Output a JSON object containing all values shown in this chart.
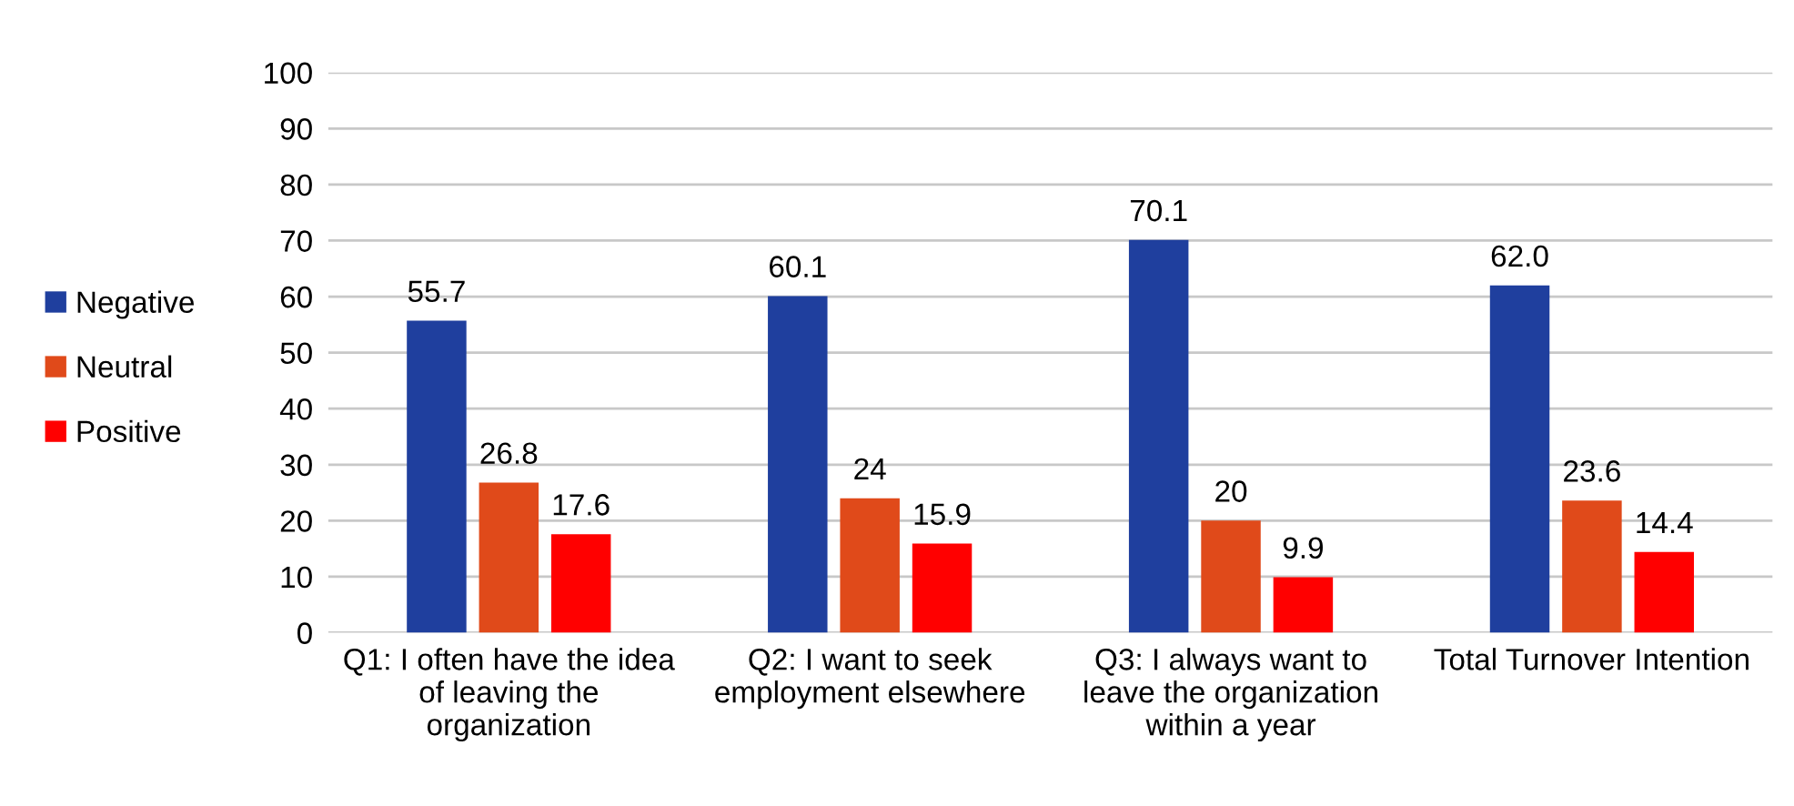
{
  "chart_data": {
    "type": "bar",
    "categories": [
      "Q1: I often have the idea\nof leaving the\norganization",
      "Q2: I want to seek\nemployment elsewhere",
      "Q3: I always want to\nleave the organization\nwithin a year",
      "Total Turnover Intention"
    ],
    "series": [
      {
        "name": "Negative",
        "color": "#1f3f9e",
        "values": [
          55.7,
          60.1,
          70.1,
          62.0
        ],
        "value_labels": [
          "55.7",
          "60.1",
          "70.1",
          "62.0"
        ]
      },
      {
        "name": "Neutral",
        "color": "#e04a1a",
        "values": [
          26.8,
          24,
          20,
          23.6
        ],
        "value_labels": [
          "26.8",
          "24",
          "20",
          "23.6"
        ]
      },
      {
        "name": "Positive",
        "color": "#ff0000",
        "values": [
          17.6,
          15.9,
          9.9,
          14.4
        ],
        "value_labels": [
          "17.6",
          "15.9",
          "9.9",
          "14.4"
        ]
      }
    ],
    "ylim": [
      0,
      100
    ],
    "yticks": [
      0,
      10,
      20,
      30,
      40,
      50,
      60,
      70,
      80,
      90,
      100
    ],
    "grid": "y",
    "legend": "left"
  }
}
